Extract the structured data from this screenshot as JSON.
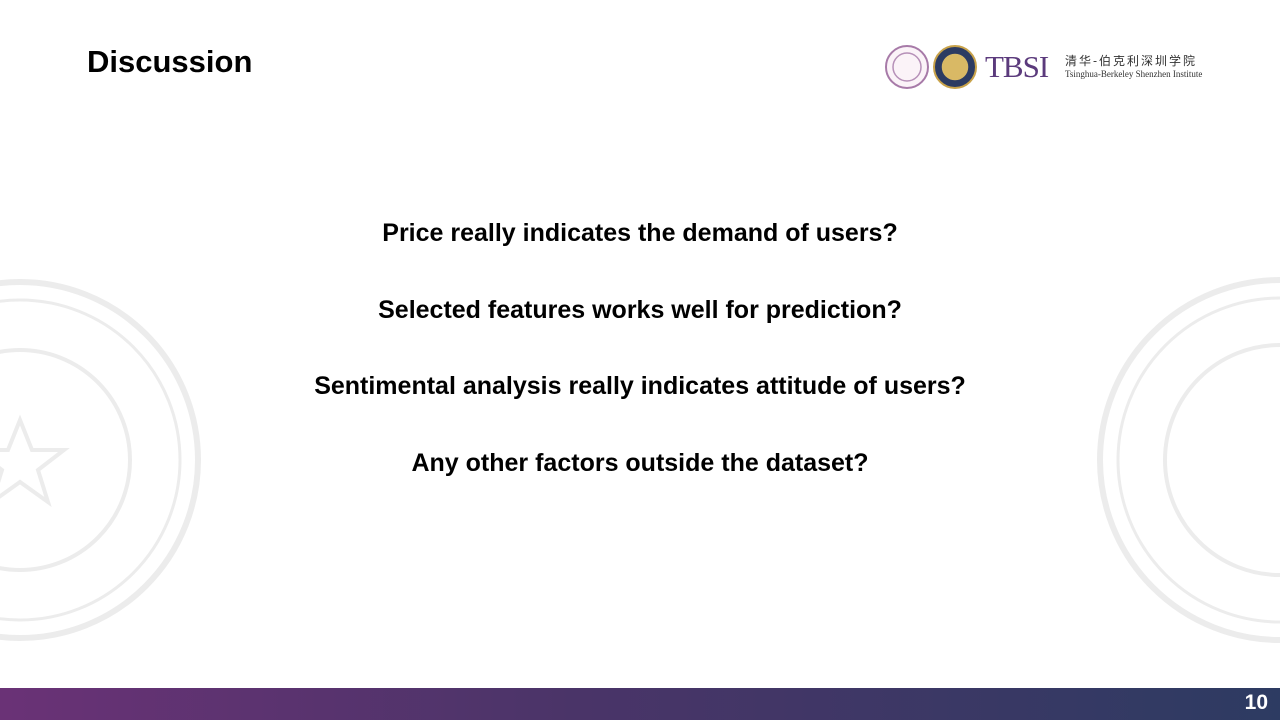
{
  "header": {
    "title": "Discussion"
  },
  "logo": {
    "acronym": "TBSI",
    "chinese_name": "清华-伯克利深圳学院",
    "english_name": "Tsinghua-Berkeley Shenzhen Institute"
  },
  "questions": [
    "Price really indicates the demand of users?",
    "Selected features works well for prediction?",
    "Sentimental analysis really indicates attitude of users?",
    "Any other factors outside the dataset?"
  ],
  "footer": {
    "page_number": "10"
  }
}
